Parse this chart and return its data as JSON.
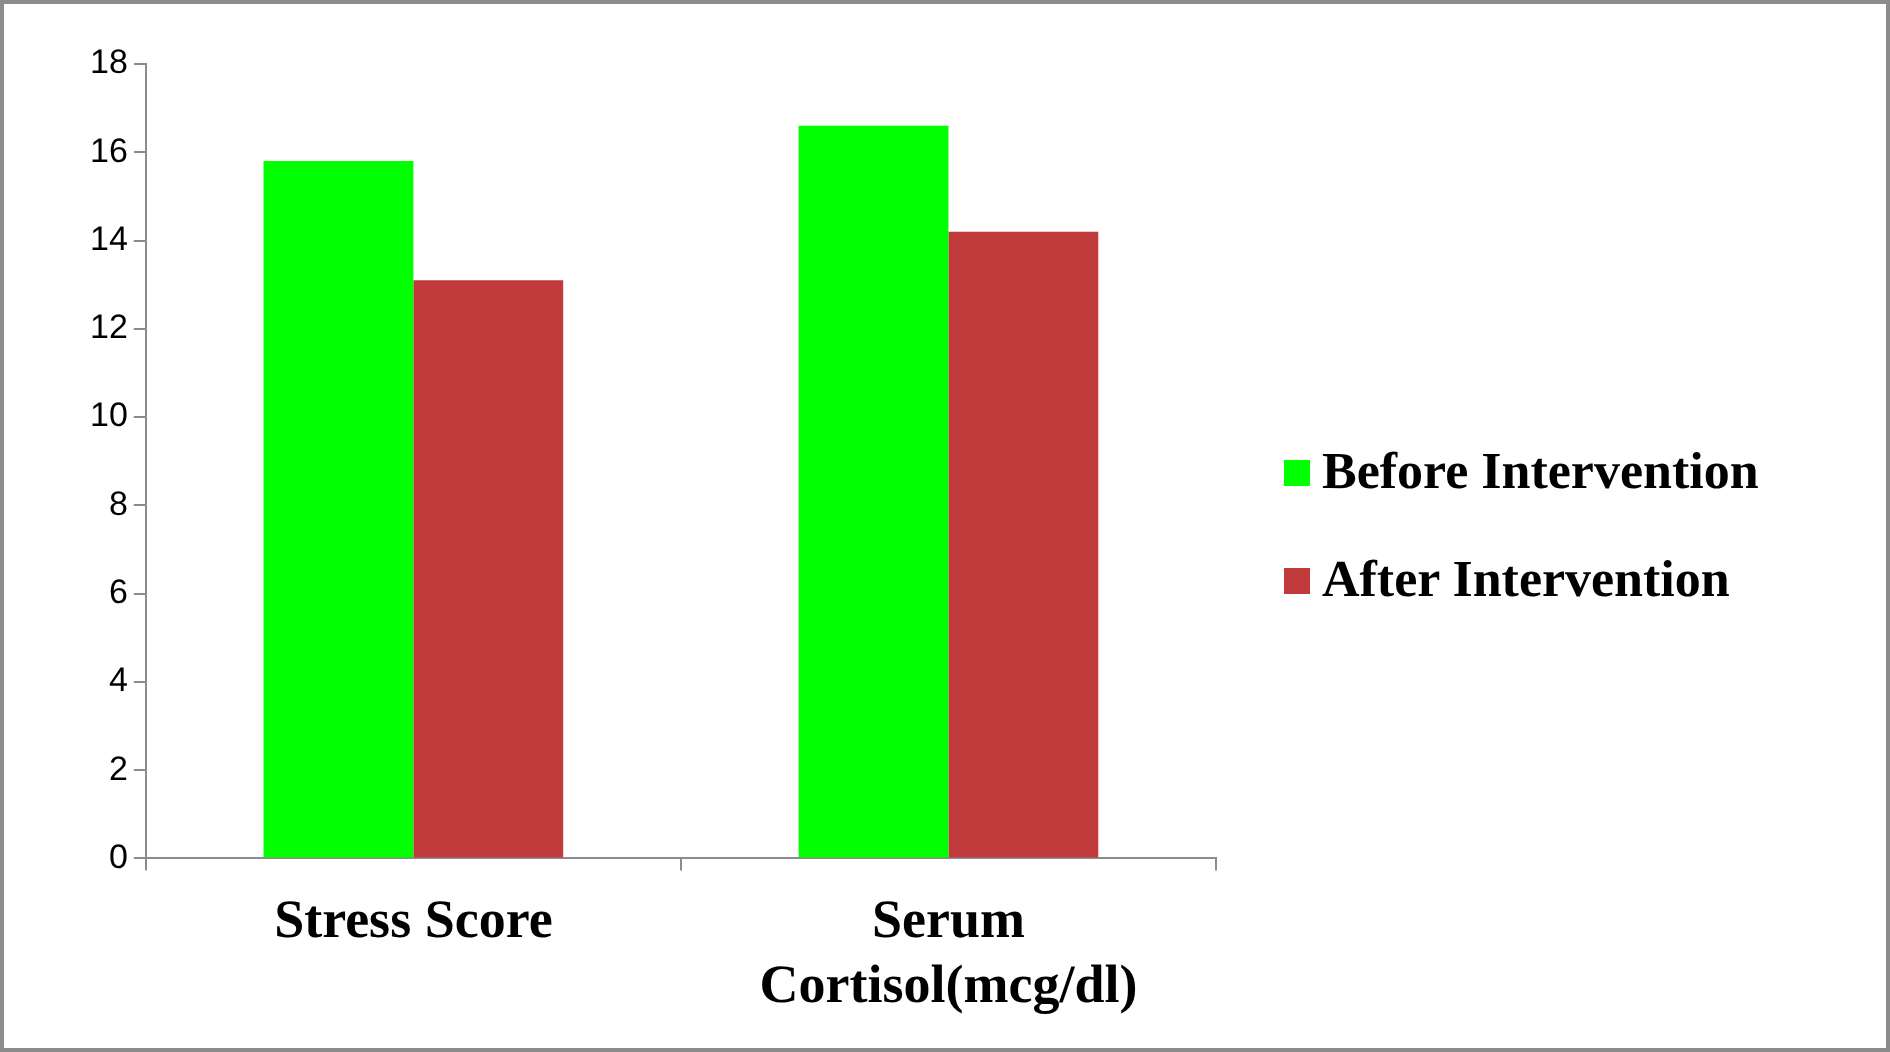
{
  "chart_data": {
    "type": "bar",
    "categories": [
      "Stress Score",
      "Serum Cortisol(mcg/dl)"
    ],
    "series": [
      {
        "name": "Before Intervention",
        "color": "#00ff00",
        "values": [
          15.8,
          16.6
        ]
      },
      {
        "name": "After Intervention",
        "color": "#c0393b",
        "values": [
          13.1,
          14.2
        ]
      }
    ],
    "ylim": [
      0,
      18
    ],
    "yticks": [
      0,
      2,
      4,
      6,
      8,
      10,
      12,
      14,
      16,
      18
    ],
    "grid": false,
    "legend": "right"
  }
}
